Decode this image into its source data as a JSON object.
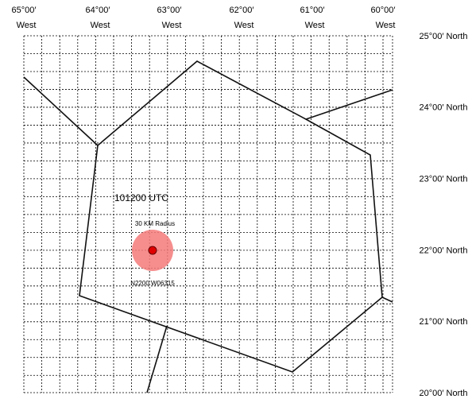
{
  "longitude_labels": [
    {
      "degrees": "65°00′",
      "direction": "West"
    },
    {
      "degrees": "64°00′",
      "direction": "West"
    },
    {
      "degrees": "63°00′",
      "direction": "West"
    },
    {
      "degrees": "62°00′",
      "direction": "West"
    },
    {
      "degrees": "61°00′",
      "direction": "West"
    },
    {
      "degrees": "60°00′",
      "direction": "West"
    }
  ],
  "latitude_labels": [
    "25°00′ North",
    "24°00′ North",
    "23°00′ North",
    "22°00′ North",
    "21°00′ North",
    "20°00′ North"
  ],
  "storm": {
    "time": "101200 UTC",
    "radius": "30 KM Radius",
    "position": "N2200 W06315"
  }
}
